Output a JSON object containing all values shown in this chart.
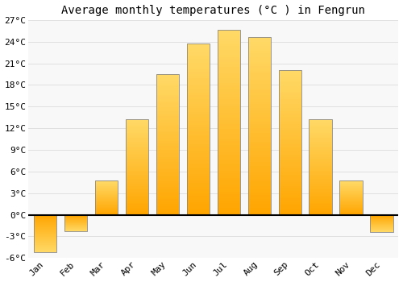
{
  "months": [
    "Jan",
    "Feb",
    "Mar",
    "Apr",
    "May",
    "Jun",
    "Jul",
    "Aug",
    "Sep",
    "Oct",
    "Nov",
    "Dec"
  ],
  "temperatures": [
    -5.2,
    -2.3,
    4.7,
    13.3,
    19.5,
    23.7,
    25.7,
    24.6,
    20.1,
    13.3,
    4.7,
    -2.4
  ],
  "bar_color_bottom": "#FFA500",
  "bar_color_top": "#FFD966",
  "bar_edge_color": "#888888",
  "title": "Average monthly temperatures (°C ) in Fengrun",
  "ylim_min": -6,
  "ylim_max": 27,
  "yticks": [
    -6,
    -3,
    0,
    3,
    6,
    9,
    12,
    15,
    18,
    21,
    24,
    27
  ],
  "background_color": "#FFFFFF",
  "plot_bg_color": "#F8F8F8",
  "grid_color": "#E0E0E0",
  "title_fontsize": 10,
  "tick_fontsize": 8,
  "font_family": "monospace",
  "bar_width": 0.75
}
